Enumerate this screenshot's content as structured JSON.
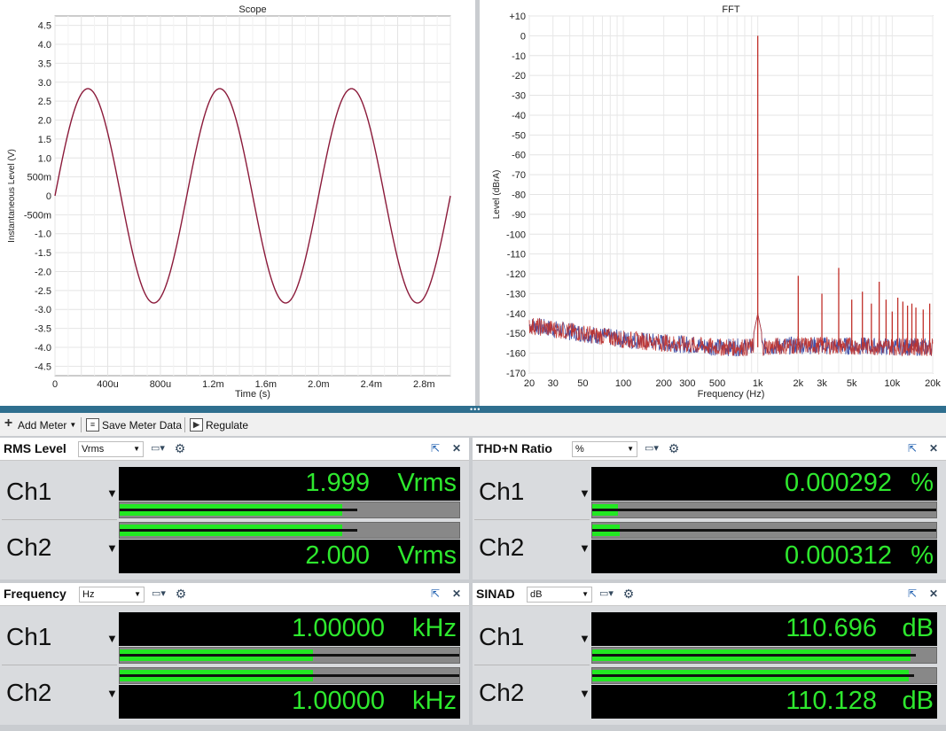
{
  "scope": {
    "title": "Scope",
    "ylabel": "Instantaneous Level (V)",
    "xlabel": "Time (s)",
    "yticks": [
      "4.5",
      "4.0",
      "3.5",
      "3.0",
      "2.5",
      "2.0",
      "1.5",
      "1.0",
      "500m",
      "0",
      "-500m",
      "-1.0",
      "-1.5",
      "-2.0",
      "-2.5",
      "-3.0",
      "-3.5",
      "-4.0",
      "-4.5"
    ],
    "xticks": [
      "0",
      "400u",
      "800u",
      "1.2m",
      "1.6m",
      "2.0m",
      "2.4m",
      "2.8m"
    ]
  },
  "fft": {
    "title": "FFT",
    "ylabel": "Level (dBrA)",
    "xlabel": "Frequency (Hz)",
    "yticks": [
      "+10",
      "0",
      "-10",
      "-20",
      "-30",
      "-40",
      "-50",
      "-60",
      "-70",
      "-80",
      "-90",
      "-100",
      "-110",
      "-120",
      "-130",
      "-140",
      "-150",
      "-160",
      "-170"
    ],
    "xticks": [
      "20",
      "30",
      "50",
      "100",
      "200",
      "300",
      "500",
      "1k",
      "2k",
      "3k",
      "5k",
      "10k",
      "20k"
    ]
  },
  "chart_data": [
    {
      "type": "line",
      "title": "Scope",
      "xlabel": "Time (s)",
      "ylabel": "Instantaneous Level (V)",
      "xlim": [
        0,
        0.003
      ],
      "ylim": [
        -4.75,
        4.75
      ],
      "grid": true,
      "series": [
        {
          "color": "#8b1a3a",
          "waveform": "sine",
          "frequency_hz": 1000,
          "amplitude_v": 2.83,
          "phase_deg": 0
        }
      ]
    },
    {
      "type": "line",
      "title": "FFT",
      "xlabel": "Frequency (Hz)",
      "ylabel": "Level (dBrA)",
      "xscale": "log",
      "xlim": [
        20,
        20000
      ],
      "ylim": [
        -170,
        10
      ],
      "grid": true,
      "noise_floor_db": [
        [
          20,
          -146
        ],
        [
          100,
          -153
        ],
        [
          500,
          -157
        ],
        [
          1000,
          -157
        ],
        [
          2000,
          -156
        ],
        [
          20000,
          -157
        ]
      ],
      "peaks": [
        {
          "x": 1000,
          "y": 0
        },
        {
          "x": 2000,
          "y": -121
        },
        {
          "x": 3000,
          "y": -130
        },
        {
          "x": 4000,
          "y": -117
        },
        {
          "x": 5000,
          "y": -133
        },
        {
          "x": 6000,
          "y": -129
        },
        {
          "x": 7000,
          "y": -135
        },
        {
          "x": 8000,
          "y": -124
        },
        {
          "x": 9000,
          "y": -133
        },
        {
          "x": 10000,
          "y": -139
        },
        {
          "x": 11000,
          "y": -132
        },
        {
          "x": 12000,
          "y": -134
        },
        {
          "x": 13000,
          "y": -136
        },
        {
          "x": 14000,
          "y": -135
        },
        {
          "x": 15000,
          "y": -137
        },
        {
          "x": 17000,
          "y": -138
        },
        {
          "x": 19000,
          "y": -135
        }
      ],
      "series": [
        {
          "color": "#3040a0"
        },
        {
          "color": "#c0302a"
        }
      ]
    }
  ],
  "toolbar": {
    "add_meter": "Add Meter",
    "save_meter_data": "Save Meter Data",
    "regulate": "Regulate"
  },
  "meters": {
    "rms": {
      "title": "RMS Level",
      "unit_option": "Vrms",
      "ch1": {
        "label": "Ch1",
        "value": "1.999",
        "unit": "Vrms",
        "bar_fill": 0.655,
        "peak": 0.7
      },
      "ch2": {
        "label": "Ch2",
        "value": "2.000",
        "unit": "Vrms",
        "bar_fill": 0.655,
        "peak": 0.7
      }
    },
    "thd": {
      "title": "THD+N Ratio",
      "unit_option": "%",
      "ch1": {
        "label": "Ch1",
        "value": "0.000292",
        "unit": "%",
        "bar_fill": 0.075,
        "peak": 1.0
      },
      "ch2": {
        "label": "Ch2",
        "value": "0.000312",
        "unit": "%",
        "bar_fill": 0.08,
        "peak": 1.0
      }
    },
    "freq": {
      "title": "Frequency",
      "unit_option": "Hz",
      "ch1": {
        "label": "Ch1",
        "value": "1.00000",
        "unit": "kHz",
        "bar_fill": 0.57,
        "peak": 1.0
      },
      "ch2": {
        "label": "Ch2",
        "value": "1.00000",
        "unit": "kHz",
        "bar_fill": 0.57,
        "peak": 1.0
      }
    },
    "sinad": {
      "title": "SINAD",
      "unit_option": "dB",
      "ch1": {
        "label": "Ch1",
        "value": "110.696",
        "unit": "dB",
        "bar_fill": 0.925,
        "peak": 0.94
      },
      "ch2": {
        "label": "Ch2",
        "value": "110.128",
        "unit": "dB",
        "bar_fill": 0.92,
        "peak": 0.935
      }
    }
  },
  "colors": {
    "meter_green": "#22e822",
    "readout_text": "#2ee82e",
    "scope_trace": "#8b1a3a",
    "fft_ch1": "#3040a0",
    "fft_ch2": "#c0302a"
  }
}
